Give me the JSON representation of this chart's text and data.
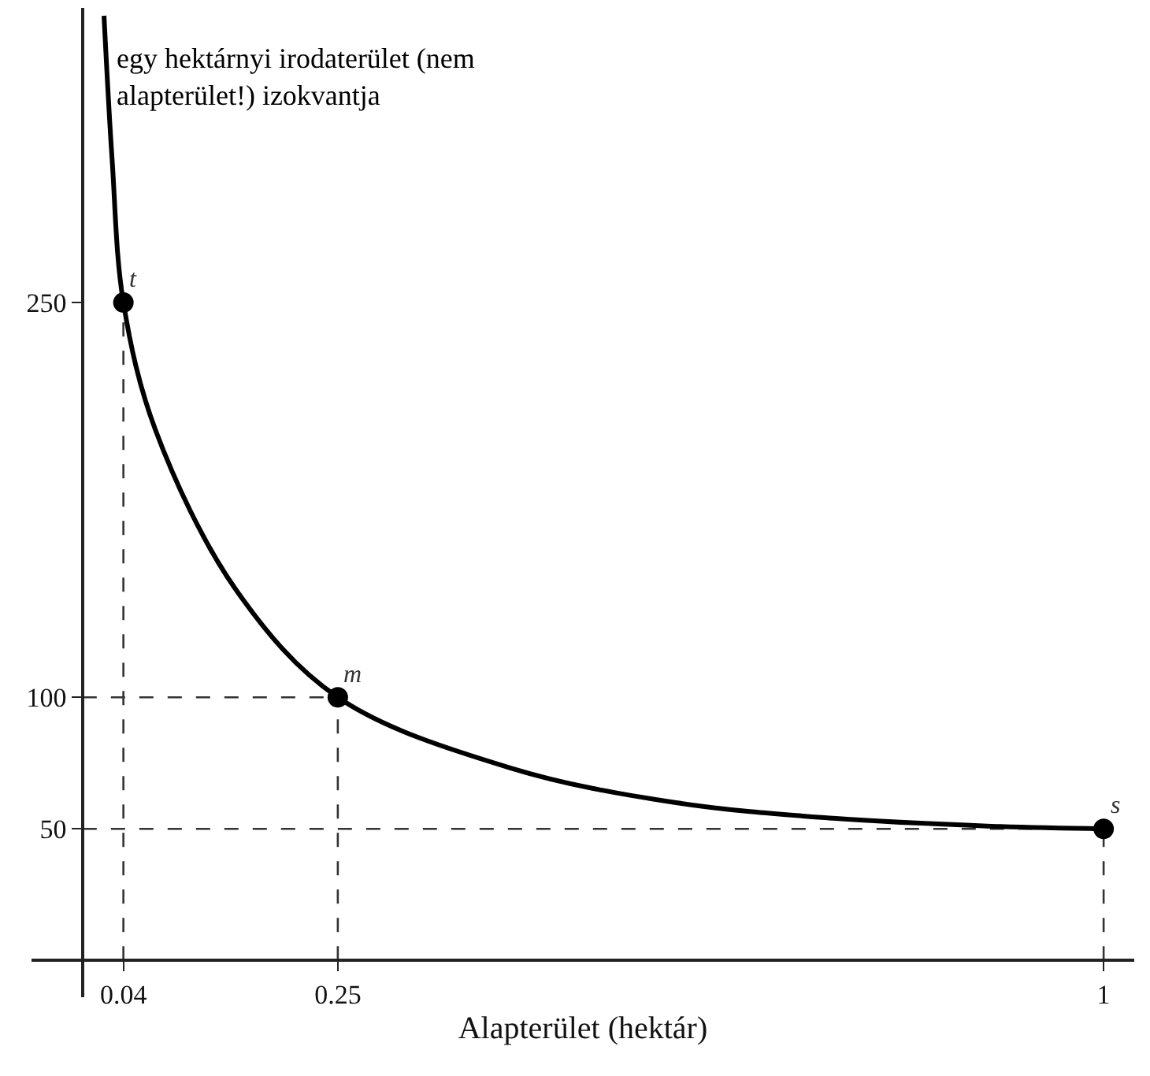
{
  "chart_data": {
    "type": "line",
    "xlabel": "Alapterület (hektár)",
    "series": [
      {
        "color": "#000000",
        "marker": "none",
        "x": [
          0.021,
          0.029,
          0.04,
          0.071,
          0.15,
          0.25,
          0.42,
          0.58,
          0.735,
          0.89,
          1
        ],
        "values": [
          359,
          304,
          250,
          202,
          141,
          100,
          73,
          60,
          54,
          51,
          50
        ]
      },
      {
        "type": "scatter",
        "color": "#000000",
        "marker": "circle",
        "x": [
          0.04,
          0.25,
          1
        ],
        "values": [
          250,
          100,
          50
        ]
      }
    ],
    "xlim": [
      -0.05,
      1.03
    ],
    "ylim": [
      -14,
      362
    ],
    "xticks": [
      0.04,
      0.25,
      1
    ],
    "yticks": [
      50,
      100,
      250
    ],
    "ref_lines": [
      {
        "axis": "x",
        "value": 0.04,
        "line_style": "dashed",
        "color": "#333333"
      },
      {
        "axis": "x",
        "value": 0.25,
        "line_style": "dashed",
        "color": "#333333"
      },
      {
        "axis": "x",
        "value": 1,
        "line_style": "dashed",
        "color": "#333333"
      },
      {
        "axis": "y",
        "value": 100,
        "line_style": "dashed",
        "color": "#333333"
      },
      {
        "axis": "y",
        "value": 50,
        "line_style": "dashed",
        "color": "#333333"
      }
    ],
    "annotations": [
      {
        "text": "t",
        "x": 0.04,
        "y": 250
      },
      {
        "text": "m",
        "x": 0.25,
        "y": 100
      },
      {
        "text": "s",
        "x": 1,
        "y": 50
      },
      "egy hektárnyi irodaterület (nem\nalapterület!) izokvantja"
    ],
    "grid": false
  }
}
